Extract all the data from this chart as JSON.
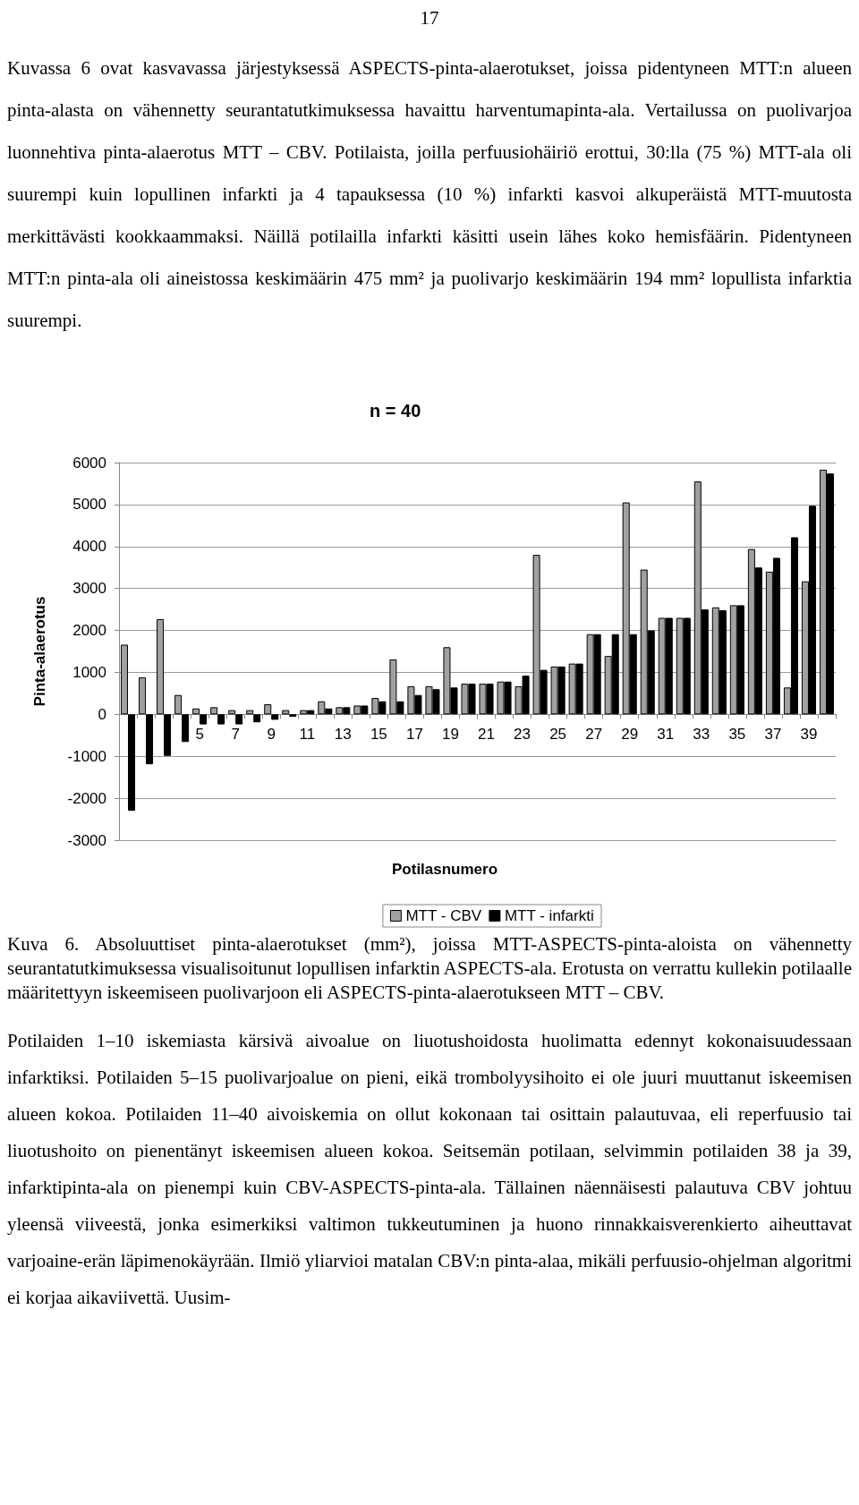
{
  "chart_data": {
    "type": "bar",
    "title": "n = 40",
    "xlabel": "Potilasnumero",
    "ylabel": "Pinta-alaerotus",
    "categories": [
      null,
      null,
      null,
      null,
      "5",
      null,
      "7",
      null,
      "9",
      null,
      "11",
      null,
      "13",
      null,
      "15",
      null,
      "17",
      null,
      "19",
      null,
      "21",
      null,
      "23",
      null,
      "25",
      null,
      "27",
      null,
      "29",
      null,
      "31",
      null,
      "33",
      null,
      "35",
      null,
      "37",
      null,
      "39",
      null
    ],
    "series": [
      {
        "name": "MTT - CBV",
        "color": "#a0a0a0",
        "values": [
          1660,
          880,
          2270,
          460,
          140,
          170,
          100,
          100,
          240,
          100,
          100,
          310,
          170,
          210,
          390,
          1310,
          670,
          670,
          1600,
          730,
          730,
          780,
          670,
          3800,
          1140,
          1210,
          1910,
          1390,
          5050,
          3450,
          2300,
          2300,
          5550,
          2550,
          2600,
          3940,
          3400,
          640,
          3170,
          5830
        ]
      },
      {
        "name": "MTT - infarkti",
        "color": "#000000",
        "values": [
          -2300,
          -1190,
          -990,
          -660,
          -240,
          -240,
          -240,
          -190,
          -130,
          -60,
          100,
          140,
          170,
          210,
          310,
          310,
          460,
          600,
          640,
          730,
          730,
          780,
          920,
          1060,
          1140,
          1210,
          1910,
          1910,
          1910,
          2000,
          2300,
          2300,
          2500,
          2480,
          2600,
          3500,
          3730,
          4220,
          4970,
          5740
        ]
      }
    ],
    "ylim": [
      -3000,
      6000
    ],
    "yticks": [
      -3000,
      -2000,
      -1000,
      0,
      1000,
      2000,
      3000,
      4000,
      5000,
      6000
    ],
    "grid": "y",
    "legend": "bottom right",
    "annotations": [
      "17",
      "Kuvassa 6 ovat kasvavassa järjestyksessä ASPECTS-pinta-alaerotukset, joissa pidentyneen MTT:n alueen pinta-alasta on vähennetty seurantatutkimuksessa havaittu harventumapinta-ala. Vertailussa on puolivarjoa luonnehtiva pinta-alaerotus MTT – CBV. Potilaista, joilla perfuusiohäiriö erottui, 30:lla (75 %) MTT-ala oli suurempi kuin lopullinen infarkti ja 4 tapauksessa (10 %) infarkti kasvoi alkuperäistä MTT-muutosta merkittävästi kookkaammaksi. Näillä potilailla infarkti käsitti usein lähes koko hemisfäärin. Pidentyneen MTT:n pinta-ala oli aineistossa keskimäärin 475 mm² ja puolivarjo keskimäärin 194 mm² lopullista infarktia suurempi.",
      "Kuva 6. Absoluuttiset pinta-alaerotukset (mm²), joissa MTT-ASPECTS-pinta-aloista on vähennetty seurantatutkimuksessa visualisoitunut lopullisen infarktin ASPECTS-ala. Erotusta on verrattu kullekin potilaalle määritettyyn iskeemiseen puolivarjoon eli ASPECTS-pinta-alaerotukseen MTT – CBV.",
      "Potilaiden 1–10 iskemiasta kärsivä aivoalue on liuotushoidosta huolimatta edennyt kokonaisuudessaan infarktiksi. Potilaiden 5–15 puolivarjoalue on pieni, eikä trombolyysihoito ei ole juuri muuttanut iskeemisen alueen kokoa. Potilaiden 11–40 aivoiskemia on ollut kokonaan tai osittain palautuvaa, eli reperfuusio tai liuotushoito on pienentänyt iskeemisen alueen kokoa. Seitsemän potilaan, selvimmin potilaiden 38 ja 39, infarktipinta-ala on pienempi kuin CBV-ASPECTS-pinta-ala. Tällainen näennäisesti palautuva CBV johtuu yleensä viiveestä, jonka esimerkiksi valtimon tukkeutuminen ja huono rinnakkaisverenkierto aiheuttavat varjoaine-erän läpimenokäyrään. Ilmiö yliarvioi matalan CBV:n pinta-alaa, mikäli perfuusio-ohjelman algoritmi ei korjaa aikaviivettä. Uusim-"
    ]
  }
}
